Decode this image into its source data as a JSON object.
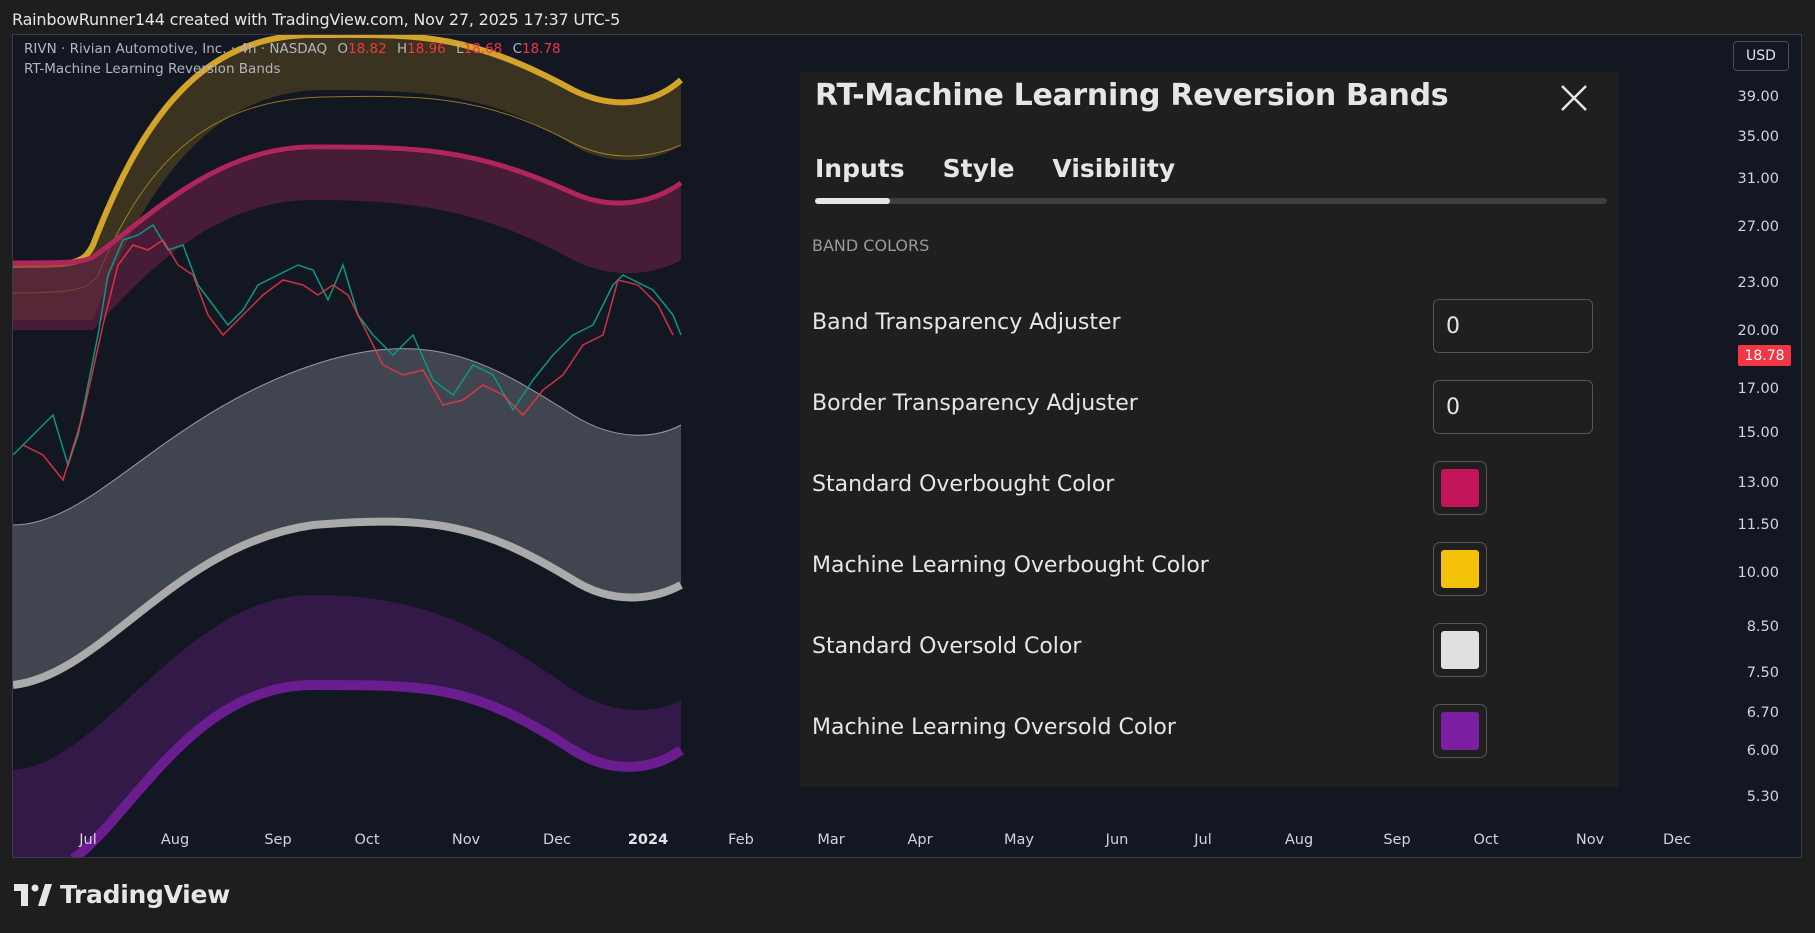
{
  "header": {
    "text": "RainbowRunner144 created with TradingView.com, Nov 27, 2025 17:37 UTC-5"
  },
  "legend": {
    "symbol": "RIVN · Rivian Automotive, Inc. · 4h · NASDAQ",
    "open_label": "O",
    "open": "18.82",
    "high_label": "H",
    "high": "18.96",
    "low_label": "L",
    "low": "18.68",
    "close_label": "C",
    "close": "18.78",
    "indicator": "RT-Machine Learning Reversion Bands"
  },
  "currency_button": "USD",
  "last_price": "18.78",
  "price_axis": [
    "39.00",
    "35.00",
    "31.00",
    "27.00",
    "23.00",
    "20.00",
    "17.00",
    "15.00",
    "13.00",
    "11.50",
    "10.00",
    "8.50",
    "7.50",
    "6.70",
    "6.00",
    "5.30"
  ],
  "time_axis": [
    "Jul",
    "Aug",
    "Sep",
    "Oct",
    "Nov",
    "Dec",
    "2024",
    "Feb",
    "Mar",
    "Apr",
    "May",
    "Jun",
    "Jul",
    "Aug",
    "Sep",
    "Oct",
    "Nov",
    "Dec"
  ],
  "dialog": {
    "title": "RT-Machine Learning Reversion Bands",
    "close_icon": "close-icon",
    "tabs": [
      "Inputs",
      "Style",
      "Visibility"
    ],
    "active_tab": "Inputs",
    "section": "BAND COLORS",
    "inputs": [
      {
        "label": "Band Transparency Adjuster",
        "value": "0"
      },
      {
        "label": "Border Transparency Adjuster",
        "value": "0"
      }
    ],
    "colors": [
      {
        "label": "Standard Overbought Color",
        "color": "#c2185b"
      },
      {
        "label": "Machine Learning Overbought Color",
        "color": "#f5c20a"
      },
      {
        "label": "Standard Oversold Color",
        "color": "#e0e0e0"
      },
      {
        "label": "Machine Learning Oversold Color",
        "color": "#7b1fa2"
      }
    ]
  },
  "brand": {
    "name": "TradingView",
    "logo_icon": "tradingview-logo-icon"
  },
  "colors": {
    "up": "#089981",
    "down": "#f23645",
    "background": "#131722"
  }
}
